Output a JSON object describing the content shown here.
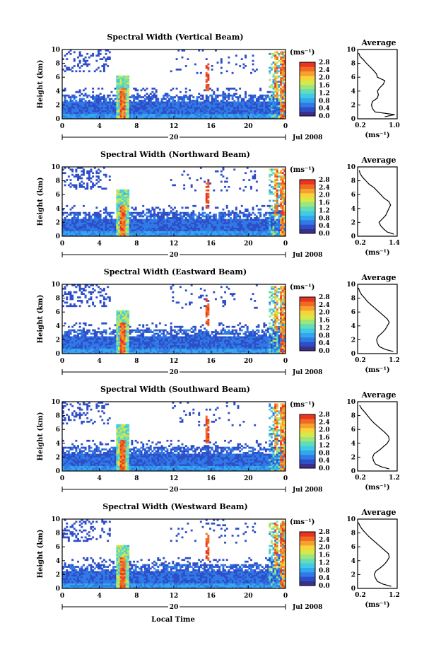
{
  "figure": {
    "x_label": "Local Time",
    "date_label": "Jul 2008",
    "day_label": "20",
    "units_label": "(ms⁻¹)",
    "y_label": "Height (km)",
    "avg_title": "Average",
    "avg_x_label": "(ms⁻¹)"
  },
  "colorscale": {
    "ticks": [
      "2.8",
      "2.4",
      "2.0",
      "1.6",
      "1.2",
      "0.8",
      "0.4",
      "0.0"
    ],
    "colors": [
      "#3a2f8c",
      "#2e4ec8",
      "#2f7ae6",
      "#33a6ee",
      "#3fcbe4",
      "#64dcb8",
      "#9ce67a",
      "#d6e84a",
      "#f6d43a",
      "#f6a02e",
      "#f06a22",
      "#e83420"
    ]
  },
  "chart_data": [
    {
      "type": "heatmap",
      "title": "Spectral Width (Vertical Beam)",
      "x": {
        "ticks": [
          "0",
          "4",
          "8",
          "12",
          "16",
          "20",
          "0"
        ],
        "range": [
          0,
          24
        ],
        "unit": "hour"
      },
      "y": {
        "ticks": [
          "0",
          "2",
          "4",
          "6",
          "8",
          "10"
        ],
        "range": [
          0,
          10
        ],
        "unit": "km"
      },
      "z_range": [
        0.0,
        2.8
      ],
      "average_profile": {
        "title": "Average",
        "x_ticks": [
          "0.2",
          "1.0"
        ],
        "x_range": [
          0.2,
          1.0
        ],
        "height_km": [
          0.3,
          0.6,
          1.0,
          1.5,
          2.0,
          2.5,
          3.0,
          3.5,
          4.0,
          4.5,
          5.0,
          5.5,
          6.0,
          6.5,
          7.0,
          7.5,
          8.0,
          8.5,
          9.0,
          9.5
        ],
        "values": [
          0.75,
          0.95,
          0.55,
          0.5,
          0.48,
          0.5,
          0.6,
          0.62,
          0.6,
          0.65,
          0.72,
          0.75,
          0.6,
          0.58,
          0.52,
          0.45,
          0.38,
          0.32,
          0.25,
          0.22
        ]
      }
    },
    {
      "type": "heatmap",
      "title": "Spectral Width (Northward Beam)",
      "x": {
        "ticks": [
          "0",
          "4",
          "8",
          "12",
          "16",
          "20",
          "0"
        ],
        "range": [
          0,
          24
        ],
        "unit": "hour"
      },
      "y": {
        "ticks": [
          "0",
          "2",
          "4",
          "6",
          "8",
          "10"
        ],
        "range": [
          0,
          10
        ],
        "unit": "km"
      },
      "z_range": [
        0.0,
        2.8
      ],
      "average_profile": {
        "title": "Average",
        "x_ticks": [
          "0.2",
          "1.4"
        ],
        "x_range": [
          0.2,
          1.4
        ],
        "height_km": [
          0.3,
          0.6,
          1.0,
          1.5,
          2.0,
          2.5,
          3.0,
          3.5,
          4.0,
          4.5,
          5.0,
          5.5,
          6.0,
          6.5,
          7.0,
          7.5,
          8.0,
          8.5,
          9.0,
          9.5
        ],
        "values": [
          1.3,
          1.1,
          1.0,
          0.9,
          0.85,
          0.95,
          1.05,
          1.1,
          1.15,
          1.2,
          1.15,
          1.0,
          0.9,
          0.8,
          0.7,
          0.55,
          0.45,
          0.35,
          0.28,
          0.25
        ]
      }
    },
    {
      "type": "heatmap",
      "title": "Spectral Width (Eastward Beam)",
      "x": {
        "ticks": [
          "0",
          "4",
          "8",
          "12",
          "16",
          "20",
          "0"
        ],
        "range": [
          0,
          24
        ],
        "unit": "hour"
      },
      "y": {
        "ticks": [
          "0",
          "2",
          "4",
          "6",
          "8",
          "10"
        ],
        "range": [
          0,
          10
        ],
        "unit": "km"
      },
      "z_range": [
        0.0,
        2.8
      ],
      "average_profile": {
        "title": "Average",
        "x_ticks": [
          "0.2",
          "1.2"
        ],
        "x_range": [
          0.2,
          1.2
        ],
        "height_km": [
          0.3,
          0.6,
          1.0,
          1.5,
          2.0,
          2.5,
          3.0,
          3.5,
          4.0,
          4.5,
          5.0,
          5.5,
          6.0,
          6.5,
          7.0,
          7.5,
          8.0,
          8.5,
          9.0,
          9.5
        ],
        "values": [
          1.1,
          0.9,
          0.75,
          0.7,
          0.68,
          0.72,
          0.82,
          0.9,
          0.95,
          1.0,
          0.95,
          0.85,
          0.75,
          0.65,
          0.55,
          0.45,
          0.38,
          0.3,
          0.25,
          0.22
        ]
      }
    },
    {
      "type": "heatmap",
      "title": "Spectral Width (Southward Beam)",
      "x": {
        "ticks": [
          "0",
          "4",
          "8",
          "12",
          "16",
          "20",
          "0"
        ],
        "range": [
          0,
          24
        ],
        "unit": "hour"
      },
      "y": {
        "ticks": [
          "0",
          "2",
          "4",
          "6",
          "8",
          "10"
        ],
        "range": [
          0,
          10
        ],
        "unit": "km"
      },
      "z_range": [
        0.0,
        2.8
      ],
      "average_profile": {
        "title": "Average",
        "x_ticks": [
          "0.2",
          "1.2"
        ],
        "x_range": [
          0.2,
          1.2
        ],
        "height_km": [
          0.3,
          0.6,
          1.0,
          1.5,
          2.0,
          2.5,
          3.0,
          3.5,
          4.0,
          4.5,
          5.0,
          5.5,
          6.0,
          6.5,
          7.0,
          7.5,
          8.0,
          8.5,
          9.0,
          9.5
        ],
        "values": [
          1.0,
          0.8,
          0.65,
          0.6,
          0.58,
          0.62,
          0.75,
          0.85,
          0.95,
          1.0,
          0.98,
          0.9,
          0.8,
          0.7,
          0.6,
          0.52,
          0.45,
          0.38,
          0.3,
          0.25
        ]
      }
    },
    {
      "type": "heatmap",
      "title": "Spectral Width (Westward Beam)",
      "x": {
        "ticks": [
          "0",
          "4",
          "8",
          "12",
          "16",
          "20",
          "0"
        ],
        "range": [
          0,
          24
        ],
        "unit": "hour"
      },
      "y": {
        "ticks": [
          "0",
          "2",
          "4",
          "6",
          "8",
          "10"
        ],
        "range": [
          0,
          10
        ],
        "unit": "km"
      },
      "z_range": [
        0.0,
        2.8
      ],
      "average_profile": {
        "title": "Average",
        "x_ticks": [
          "0.2",
          "1.2"
        ],
        "x_range": [
          0.2,
          1.2
        ],
        "height_km": [
          0.3,
          0.6,
          1.0,
          1.5,
          2.0,
          2.5,
          3.0,
          3.5,
          4.0,
          4.5,
          5.0,
          5.5,
          6.0,
          6.5,
          7.0,
          7.5,
          8.0,
          8.5,
          9.0,
          9.5
        ],
        "values": [
          1.05,
          0.85,
          0.7,
          0.65,
          0.62,
          0.66,
          0.78,
          0.88,
          0.95,
          1.0,
          0.98,
          0.88,
          0.78,
          0.68,
          0.58,
          0.48,
          0.4,
          0.32,
          0.26,
          0.22
        ]
      }
    }
  ]
}
